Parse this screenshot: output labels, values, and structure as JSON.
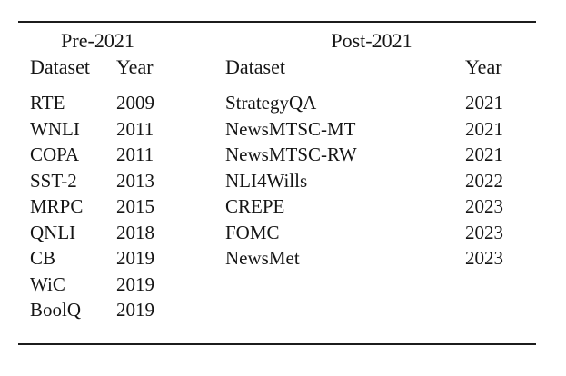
{
  "table": {
    "groups": [
      {
        "title": "Pre-2021",
        "columns": [
          "Dataset",
          "Year"
        ],
        "rows": [
          [
            "RTE",
            "2009"
          ],
          [
            "WNLI",
            "2011"
          ],
          [
            "COPA",
            "2011"
          ],
          [
            "SST-2",
            "2013"
          ],
          [
            "MRPC",
            "2015"
          ],
          [
            "QNLI",
            "2018"
          ],
          [
            "CB",
            "2019"
          ],
          [
            "WiC",
            "2019"
          ],
          [
            "BoolQ",
            "2019"
          ]
        ]
      },
      {
        "title": "Post-2021",
        "columns": [
          "Dataset",
          "Year"
        ],
        "rows": [
          [
            "StrategyQA",
            "2021"
          ],
          [
            "NewsMTSC-MT",
            "2021"
          ],
          [
            "NewsMTSC-RW",
            "2021"
          ],
          [
            "NLI4Wills",
            "2022"
          ],
          [
            "CREPE",
            "2023"
          ],
          [
            "FOMC",
            "2023"
          ],
          [
            "NewsMet",
            "2023"
          ]
        ]
      }
    ],
    "colors": {
      "text": "#151515",
      "thick_rule": "#1c1c1c",
      "thin_rule": "#4a4a4a",
      "background": "#ffffff"
    }
  }
}
